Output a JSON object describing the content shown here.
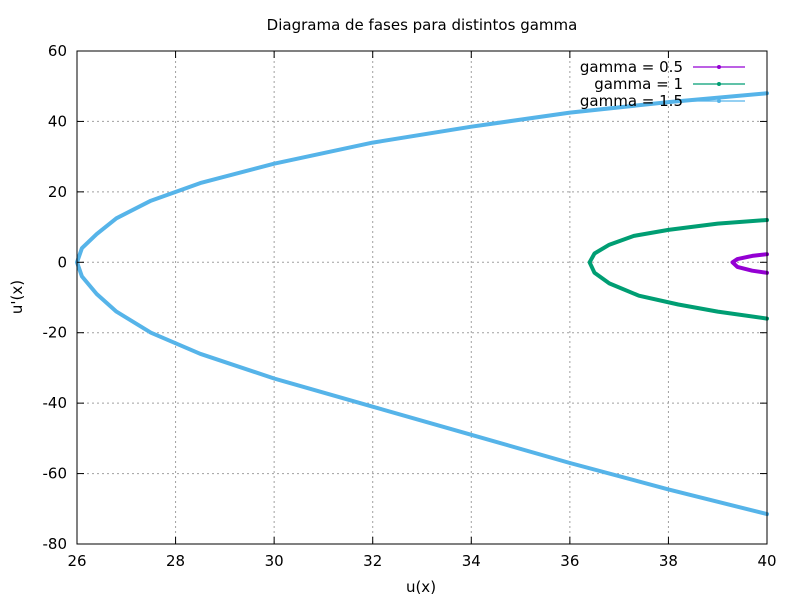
{
  "chart_data": {
    "type": "line",
    "title": "Diagrama de fases para distintos gamma",
    "xlabel": "u(x)",
    "ylabel": "u'(x)",
    "xlim": [
      26,
      40
    ],
    "ylim": [
      -80,
      60
    ],
    "xticks": [
      26,
      28,
      30,
      32,
      34,
      36,
      38,
      40
    ],
    "yticks": [
      -80,
      -60,
      -40,
      -20,
      0,
      20,
      40,
      60
    ],
    "grid": true,
    "legend_position": "top-right",
    "series": [
      {
        "name": "gamma = 0.5",
        "color": "#9400d3",
        "x": [
          40.0,
          39.7,
          39.4,
          39.3,
          39.4,
          39.7,
          40.0
        ],
        "y": [
          2.3,
          1.8,
          0.9,
          0.0,
          -1.3,
          -2.4,
          -3.0
        ]
      },
      {
        "name": "gamma = 1",
        "color": "#009e73",
        "x": [
          40.0,
          39.0,
          38.0,
          37.3,
          36.8,
          36.5,
          36.4,
          36.5,
          36.8,
          37.4,
          38.2,
          39.0,
          40.0
        ],
        "y": [
          12.0,
          11.0,
          9.2,
          7.5,
          5.0,
          2.5,
          0.0,
          -3.0,
          -6.0,
          -9.5,
          -12.0,
          -14.0,
          -16.0
        ]
      },
      {
        "name": "gamma = 1.5",
        "color": "#56b4e9",
        "x": [
          40.0,
          38.0,
          36.0,
          34.0,
          32.0,
          30.0,
          28.5,
          27.5,
          26.8,
          26.4,
          26.1,
          26.0,
          26.1,
          26.4,
          26.8,
          27.5,
          28.5,
          30.0,
          32.0,
          34.0,
          36.0,
          38.0,
          40.0
        ],
        "y": [
          48.0,
          45.5,
          42.5,
          38.5,
          34.0,
          28.0,
          22.5,
          17.5,
          12.5,
          8.0,
          4.0,
          0.0,
          -4.0,
          -9.0,
          -14.0,
          -20.0,
          -26.0,
          -33.0,
          -41.0,
          -49.0,
          -57.0,
          -64.5,
          -71.5
        ]
      }
    ]
  }
}
